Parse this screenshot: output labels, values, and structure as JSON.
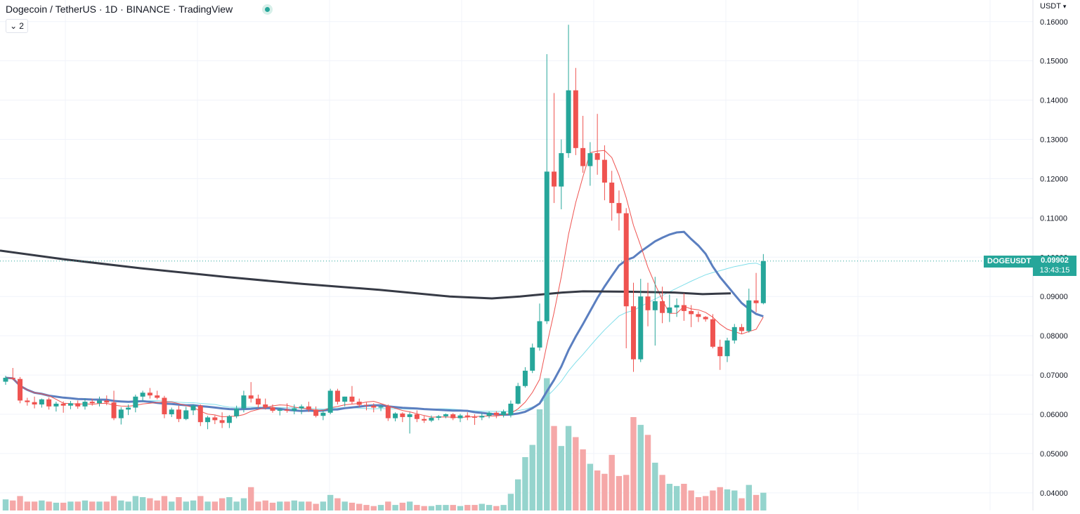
{
  "header": {
    "title": "Dogecoin / TetherUS · 1D · BINANCE · TradingView",
    "collapse_count": "2",
    "currency_label": "USDT"
  },
  "last_price": {
    "symbol": "DOGEUSDT",
    "price": "0.09902",
    "countdown": "13:43:15"
  },
  "colors": {
    "up": "#26a69a",
    "down": "#ef5350",
    "vol_up": "#95d4cd",
    "vol_down": "#f5a8a8",
    "ma_long": "#363a45",
    "ma_mid": "#5b7fc0",
    "ma_short": "#ef5350",
    "ma_cyan": "#80deea",
    "grid": "#f0f3fa"
  },
  "chart_data": {
    "type": "candlestick",
    "ylim": [
      0.0355,
      0.1655
    ],
    "y_ticks": [
      "0.16000",
      "0.15000",
      "0.14000",
      "0.13000",
      "0.12000",
      "0.11000",
      "0.10000",
      "0.09000",
      "0.08000",
      "0.07000",
      "0.06000",
      "0.05000",
      "0.04000"
    ],
    "candles": [
      [
        0.0683,
        0.0698,
        0.0675,
        0.0693
      ],
      [
        0.0693,
        0.0718,
        0.0687,
        0.069
      ],
      [
        0.069,
        0.0695,
        0.0628,
        0.0635
      ],
      [
        0.0635,
        0.0642,
        0.0622,
        0.0631
      ],
      [
        0.0631,
        0.0645,
        0.0615,
        0.0625
      ],
      [
        0.0625,
        0.064,
        0.0617,
        0.0638
      ],
      [
        0.0638,
        0.0643,
        0.0612,
        0.062
      ],
      [
        0.062,
        0.0632,
        0.0607,
        0.0627
      ],
      [
        0.0627,
        0.0633,
        0.0604,
        0.0622
      ],
      [
        0.0622,
        0.0634,
        0.0613,
        0.0628
      ],
      [
        0.0628,
        0.0635,
        0.0614,
        0.062
      ],
      [
        0.062,
        0.064,
        0.0612,
        0.0632
      ],
      [
        0.0632,
        0.064,
        0.0622,
        0.0628
      ],
      [
        0.0628,
        0.0645,
        0.062,
        0.0635
      ],
      [
        0.0635,
        0.0648,
        0.0623,
        0.063
      ],
      [
        0.063,
        0.066,
        0.0585,
        0.059
      ],
      [
        0.059,
        0.0618,
        0.0574,
        0.0612
      ],
      [
        0.0612,
        0.0625,
        0.0598,
        0.0617
      ],
      [
        0.0617,
        0.065,
        0.0605,
        0.0645
      ],
      [
        0.0645,
        0.066,
        0.0633,
        0.0655
      ],
      [
        0.0655,
        0.0667,
        0.064,
        0.0648
      ],
      [
        0.0648,
        0.066,
        0.0638,
        0.0642
      ],
      [
        0.0642,
        0.0647,
        0.059,
        0.06
      ],
      [
        0.06,
        0.0617,
        0.0593,
        0.0612
      ],
      [
        0.0612,
        0.0622,
        0.058,
        0.0588
      ],
      [
        0.0588,
        0.0619,
        0.0585,
        0.061
      ],
      [
        0.061,
        0.0625,
        0.0598,
        0.0622
      ],
      [
        0.0622,
        0.0625,
        0.057,
        0.058
      ],
      [
        0.058,
        0.0596,
        0.0562,
        0.0592
      ],
      [
        0.0592,
        0.0597,
        0.0575,
        0.0585
      ],
      [
        0.0585,
        0.0605,
        0.0565,
        0.0578
      ],
      [
        0.0578,
        0.0598,
        0.0565,
        0.0595
      ],
      [
        0.0595,
        0.0622,
        0.059,
        0.0615
      ],
      [
        0.0615,
        0.066,
        0.0605,
        0.0648
      ],
      [
        0.0648,
        0.0682,
        0.063,
        0.064
      ],
      [
        0.064,
        0.065,
        0.0617,
        0.0625
      ],
      [
        0.0625,
        0.064,
        0.0612,
        0.0618
      ],
      [
        0.0618,
        0.0625,
        0.0604,
        0.0609
      ],
      [
        0.0609,
        0.0616,
        0.0597,
        0.0612
      ],
      [
        0.0612,
        0.0628,
        0.0604,
        0.0609
      ],
      [
        0.0609,
        0.0625,
        0.06,
        0.0615
      ],
      [
        0.0615,
        0.0625,
        0.06,
        0.062
      ],
      [
        0.062,
        0.0632,
        0.0606,
        0.0612
      ],
      [
        0.0612,
        0.062,
        0.0592,
        0.0596
      ],
      [
        0.0596,
        0.061,
        0.0585,
        0.0604
      ],
      [
        0.0604,
        0.0665,
        0.06,
        0.066
      ],
      [
        0.066,
        0.0665,
        0.0625,
        0.0632
      ],
      [
        0.0632,
        0.0645,
        0.062,
        0.0645
      ],
      [
        0.0645,
        0.0672,
        0.0625,
        0.0632
      ],
      [
        0.0632,
        0.064,
        0.0618,
        0.0624
      ],
      [
        0.0624,
        0.063,
        0.061,
        0.0622
      ],
      [
        0.0622,
        0.0628,
        0.0605,
        0.0617
      ],
      [
        0.0617,
        0.0624,
        0.0608,
        0.062
      ],
      [
        0.062,
        0.0625,
        0.0583,
        0.059
      ],
      [
        0.059,
        0.0605,
        0.0582,
        0.0602
      ],
      [
        0.0602,
        0.0605,
        0.058,
        0.0593
      ],
      [
        0.0593,
        0.0605,
        0.0551,
        0.06
      ],
      [
        0.06,
        0.061,
        0.058,
        0.0588
      ],
      [
        0.0588,
        0.0596,
        0.0578,
        0.0584
      ],
      [
        0.0584,
        0.0597,
        0.058,
        0.0591
      ],
      [
        0.0591,
        0.0598,
        0.0585,
        0.0595
      ],
      [
        0.0595,
        0.0602,
        0.059,
        0.06
      ],
      [
        0.06,
        0.0603,
        0.0585,
        0.059
      ],
      [
        0.059,
        0.0601,
        0.058,
        0.0597
      ],
      [
        0.0597,
        0.0605,
        0.0585,
        0.0593
      ],
      [
        0.0593,
        0.06,
        0.0573,
        0.0592
      ],
      [
        0.0592,
        0.0604,
        0.0585,
        0.0596
      ],
      [
        0.0596,
        0.0607,
        0.059,
        0.0604
      ],
      [
        0.0604,
        0.0608,
        0.059,
        0.0598
      ],
      [
        0.0598,
        0.0612,
        0.0592,
        0.0607
      ],
      [
        0.0598,
        0.0635,
        0.0592,
        0.0627
      ],
      [
        0.0627,
        0.068,
        0.0625,
        0.0672
      ],
      [
        0.0672,
        0.072,
        0.0668,
        0.0711
      ],
      [
        0.0711,
        0.078,
        0.0705,
        0.077
      ],
      [
        0.077,
        0.0882,
        0.0762,
        0.0837
      ],
      [
        0.0837,
        0.1517,
        0.083,
        0.1218
      ],
      [
        0.1218,
        0.1418,
        0.1138,
        0.118
      ],
      [
        0.118,
        0.13,
        0.1122,
        0.1265
      ],
      [
        0.1265,
        0.1592,
        0.1253,
        0.1425
      ],
      [
        0.1425,
        0.1482,
        0.126,
        0.1278
      ],
      [
        0.1278,
        0.136,
        0.1215,
        0.1232
      ],
      [
        0.1232,
        0.1293,
        0.1182,
        0.1265
      ],
      [
        0.1265,
        0.1365,
        0.121,
        0.1248
      ],
      [
        0.1248,
        0.1285,
        0.1145,
        0.119
      ],
      [
        0.119,
        0.122,
        0.1093,
        0.1138
      ],
      [
        0.1138,
        0.117,
        0.1068,
        0.1112
      ],
      [
        0.1112,
        0.1125,
        0.0768,
        0.0875
      ],
      [
        0.0875,
        0.0935,
        0.0708,
        0.074
      ],
      [
        0.074,
        0.0945,
        0.0733,
        0.09
      ],
      [
        0.09,
        0.0935,
        0.0824,
        0.0865
      ],
      [
        0.0865,
        0.095,
        0.0775,
        0.0888
      ],
      [
        0.0888,
        0.0925,
        0.0832,
        0.0858
      ],
      [
        0.0858,
        0.0905,
        0.0835,
        0.0872
      ],
      [
        0.0872,
        0.0895,
        0.0848,
        0.0878
      ],
      [
        0.0878,
        0.0908,
        0.0838,
        0.0863
      ],
      [
        0.0863,
        0.0878,
        0.0822,
        0.0855
      ],
      [
        0.0855,
        0.0862,
        0.0835,
        0.0848
      ],
      [
        0.0848,
        0.085,
        0.0836,
        0.0842
      ],
      [
        0.0842,
        0.0855,
        0.0768,
        0.0772
      ],
      [
        0.0772,
        0.079,
        0.0713,
        0.0748
      ],
      [
        0.0748,
        0.0795,
        0.0733,
        0.0788
      ],
      [
        0.0788,
        0.083,
        0.078,
        0.0822
      ],
      [
        0.0822,
        0.083,
        0.0805,
        0.0812
      ],
      [
        0.0812,
        0.092,
        0.0808,
        0.089
      ],
      [
        0.089,
        0.096,
        0.086,
        0.0883
      ],
      [
        0.0883,
        0.1008,
        0.088,
        0.099
      ]
    ],
    "volume": [
      10,
      9,
      13,
      8,
      8,
      9,
      8,
      7,
      7,
      8,
      8,
      9,
      8,
      8,
      8,
      13,
      9,
      8,
      13,
      12,
      11,
      9,
      13,
      8,
      12,
      8,
      9,
      13,
      8,
      8,
      11,
      12,
      8,
      11,
      21,
      8,
      9,
      7,
      8,
      8,
      9,
      8,
      8,
      6,
      8,
      14,
      11,
      8,
      7,
      6,
      5,
      4,
      5,
      8,
      5,
      7,
      8,
      5,
      4,
      4,
      5,
      5,
      5,
      4,
      5,
      5,
      6,
      5,
      4,
      5,
      15,
      28,
      48,
      59,
      91,
      119,
      76,
      58,
      76,
      66,
      55,
      42,
      36,
      33,
      50,
      31,
      32,
      84,
      77,
      68,
      43,
      32,
      24,
      22,
      24,
      18,
      12,
      13,
      18,
      21,
      19,
      18,
      11,
      23,
      14,
      16
    ]
  }
}
